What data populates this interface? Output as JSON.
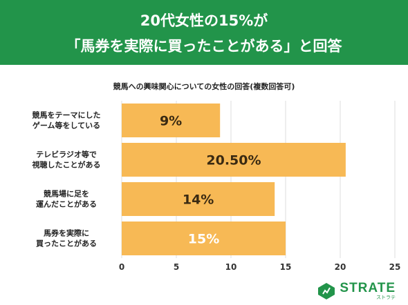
{
  "header": {
    "title_line1": "20代女性の15%が",
    "title_line2": "「馬券を実際に買ったことがある」と回答"
  },
  "colors": {
    "header_bg": "#22944a",
    "bar": "#f7b955",
    "bar_label_dark": "#3a2a12",
    "bar_label_light": "#ffffff"
  },
  "chart_data": {
    "type": "bar",
    "orientation": "horizontal",
    "title": "競馬への興味関心についての女性の回答(複数回答可)",
    "categories": [
      [
        "競馬をテーマにした",
        "ゲーム等をしている"
      ],
      [
        "テレビラジオ等で",
        "視聴したことがある"
      ],
      [
        "競馬場に足を",
        "運んだことがある"
      ],
      [
        "馬券を実際に",
        "買ったことがある"
      ]
    ],
    "values": [
      9,
      20.5,
      14,
      15
    ],
    "data_labels": [
      "9%",
      "20.50%",
      "14%",
      "15%"
    ],
    "xlim": [
      0,
      25
    ],
    "xticks": [
      0,
      5,
      10,
      15,
      20,
      25
    ],
    "grid": true,
    "highlight_index": 3
  },
  "logo": {
    "text": "STRATE",
    "sub": "ストラテ"
  }
}
